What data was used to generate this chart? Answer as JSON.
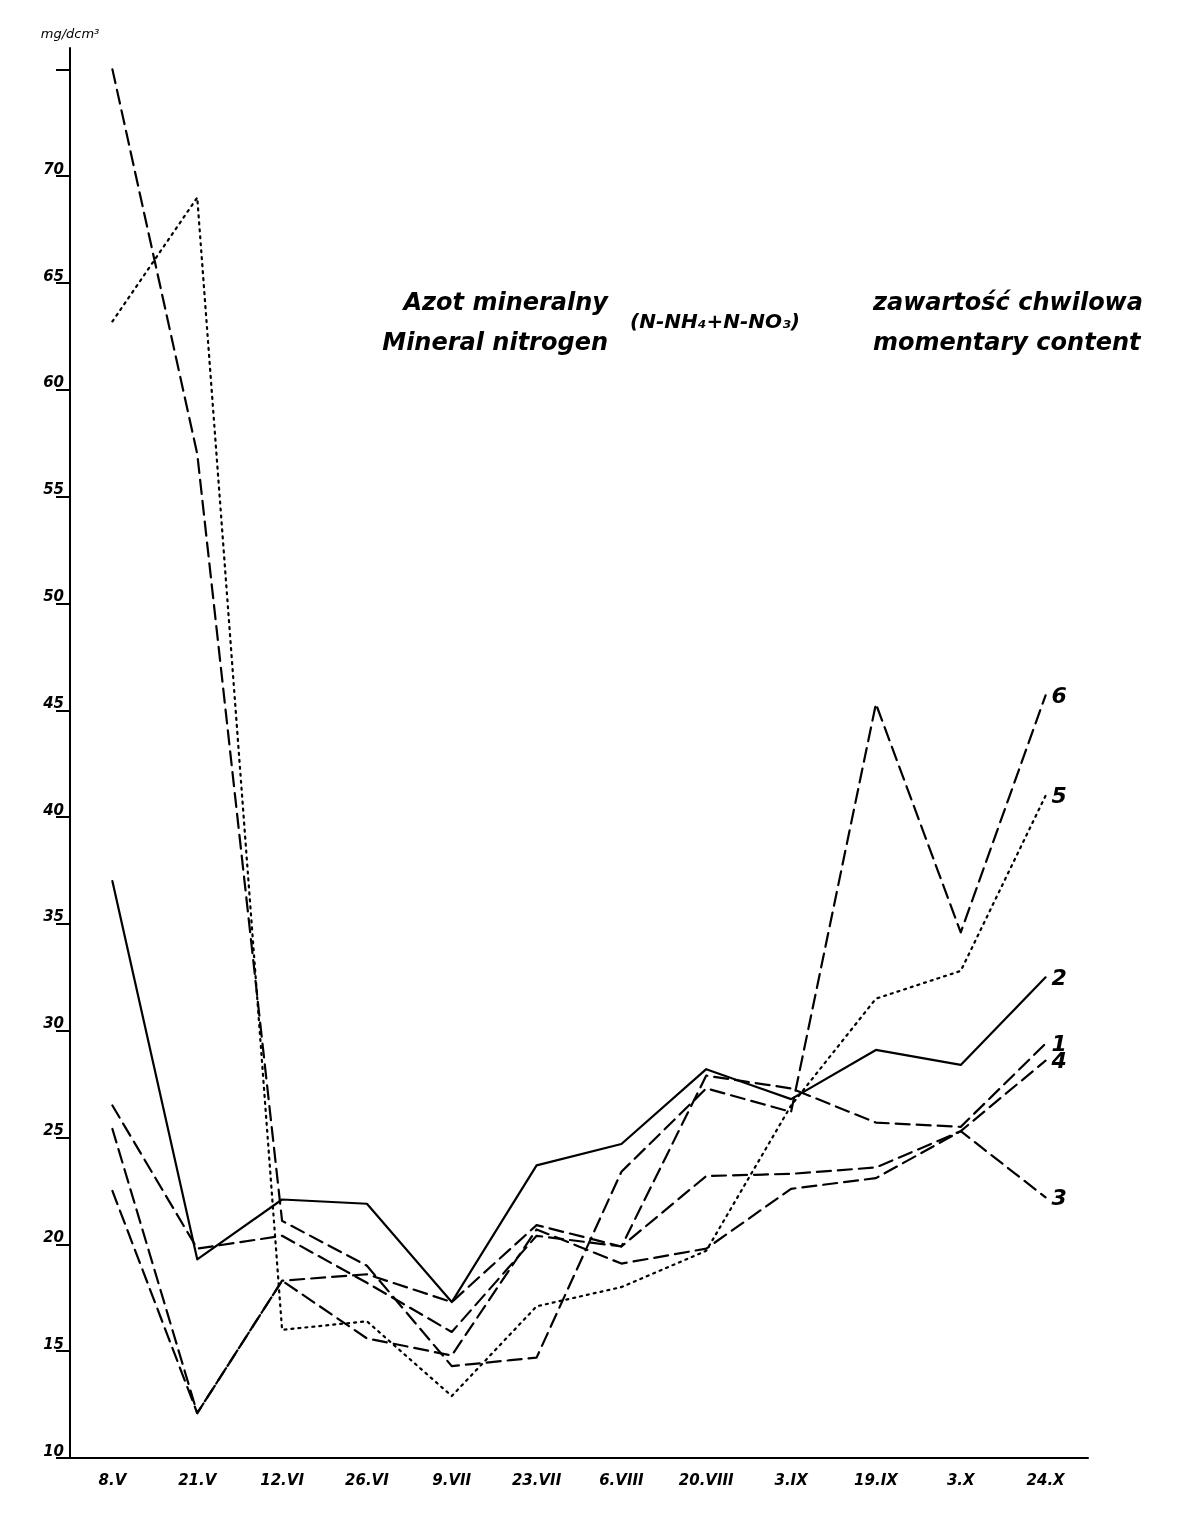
{
  "chart_data": {
    "type": "line",
    "title": "Azot mineralny",
    "subtitle": "Mineral nitrogen",
    "annotations": [
      "(N-NH₄+N-NO₃)",
      "zawartość chwilowa",
      "momentary content"
    ],
    "ylabel": "mg/dcm³",
    "categories": [
      "8.V",
      "21.V",
      "12.VI",
      "26.VI",
      "9.VII",
      "23.VII",
      "6.VIII",
      "20.VIII",
      "3.IX",
      "19.IX",
      "3.X",
      "24.X"
    ],
    "ylim": [
      10,
      76
    ],
    "yticks": [
      10,
      15,
      20,
      25,
      30,
      35,
      40,
      45,
      50,
      55,
      60,
      65,
      70,
      {
        "value": 75,
        "label": null
      }
    ],
    "grid": false,
    "legend": false,
    "marker": "none",
    "series": [
      {
        "name": "1",
        "color": "#000000",
        "line_style": "dashed",
        "values": [
          25.4,
          12.1,
          18.3,
          18.6,
          17.3,
          20.9,
          19.9,
          27.9,
          27.3,
          25.7,
          25.5,
          29.4
        ]
      },
      {
        "name": "2",
        "color": "#000000",
        "line_style": "solid",
        "values": [
          37.0,
          19.3,
          22.1,
          21.9,
          17.3,
          23.7,
          24.7,
          28.2,
          26.8,
          29.1,
          28.4,
          32.5
        ]
      },
      {
        "name": "3",
        "color": "#000000",
        "line_style": "dashed",
        "values": [
          22.5,
          12.1,
          18.3,
          15.6,
          14.8,
          20.7,
          19.1,
          19.8,
          22.6,
          23.1,
          25.3,
          22.2
        ]
      },
      {
        "name": "4",
        "color": "#000000",
        "line_style": "dashed",
        "values": [
          26.5,
          19.8,
          20.4,
          18.2,
          15.9,
          20.4,
          19.9,
          23.2,
          23.3,
          23.6,
          25.3,
          28.6
        ]
      },
      {
        "name": "5",
        "color": "#000000",
        "line_style": "dotted",
        "values": [
          63.2,
          69.0,
          16.0,
          16.4,
          12.9,
          17.1,
          18.0,
          19.7,
          26.5,
          31.5,
          32.8,
          41.0
        ]
      },
      {
        "name": "6",
        "color": "#000000",
        "line_style": "dashed",
        "values": [
          75.0,
          57.0,
          21.1,
          19.0,
          14.3,
          14.7,
          23.4,
          27.3,
          26.2,
          45.3,
          34.6,
          45.7
        ]
      }
    ]
  }
}
